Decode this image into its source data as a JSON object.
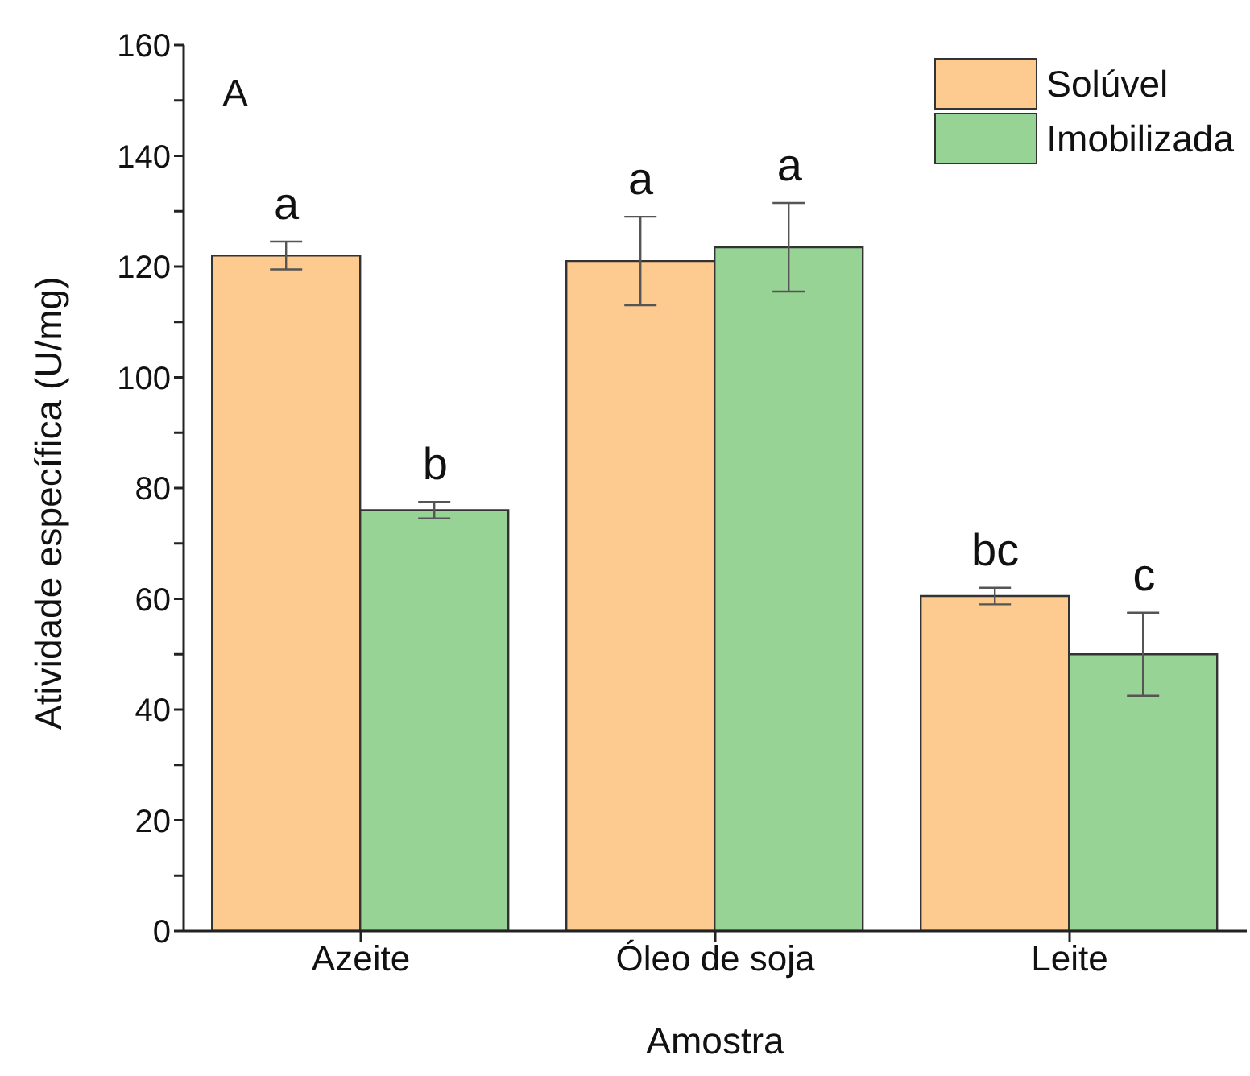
{
  "chart_data": {
    "type": "bar",
    "xlabel": "Amostra",
    "ylabel": "Atividade específica (U/mg)",
    "categories": [
      "Azeite",
      "Óleo de soja",
      "Leite"
    ],
    "series": [
      {
        "name": "Solúvel",
        "color": "#fdca8f",
        "values": [
          122,
          121,
          60.5
        ],
        "errors": [
          2.5,
          8,
          1.5
        ]
      },
      {
        "name": "Imobilizada",
        "color": "#98d396",
        "values": [
          76,
          123.5,
          50
        ],
        "errors": [
          1.5,
          8,
          7.5
        ]
      }
    ],
    "ylim": [
      0,
      160
    ],
    "yticks": [
      0,
      {
        "value": 10,
        "label": null
      },
      20,
      {
        "value": 30,
        "label": null
      },
      40,
      {
        "value": 50,
        "label": null
      },
      60,
      {
        "value": 70,
        "label": null
      },
      80,
      {
        "value": 90,
        "label": null
      },
      100,
      {
        "value": 110,
        "label": null
      },
      120,
      {
        "value": 130,
        "label": null
      },
      140,
      {
        "value": 150,
        "label": null
      },
      160
    ],
    "legend": "top right",
    "grid": false,
    "annotations": [
      "A",
      "a",
      "b",
      "a",
      "a",
      "bc",
      "c"
    ]
  }
}
